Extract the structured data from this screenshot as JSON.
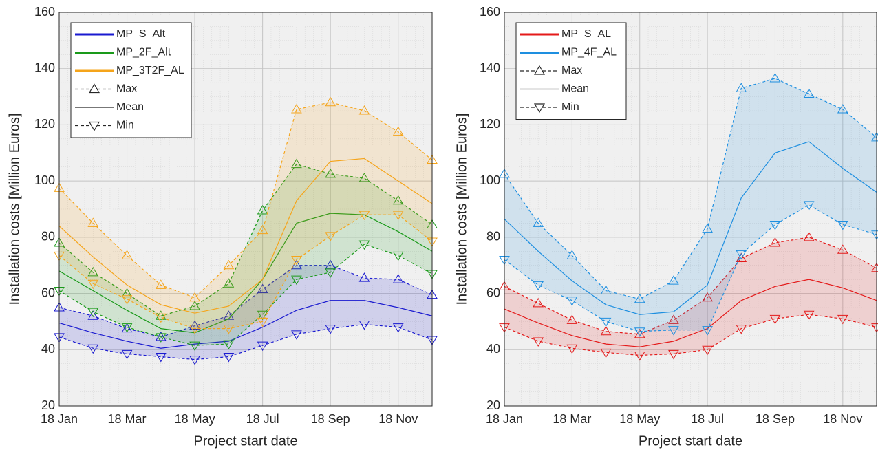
{
  "chart_data": [
    {
      "type": "line",
      "ylabel": "Installation costs [Million Euros]",
      "xlabel": "Project start date",
      "categories": [
        "18 Jan",
        null,
        "18 Mar",
        null,
        "18 May",
        null,
        "18 Jul",
        null,
        "18 Sep",
        null,
        "18 Nov",
        null
      ],
      "ylim": [
        20,
        160
      ],
      "yticks": [
        20,
        40,
        60,
        80,
        100,
        120,
        140,
        160
      ],
      "grid": true,
      "style_legend": [
        "Max",
        "Mean",
        "Min"
      ],
      "series": [
        {
          "name": "MP_S_Alt",
          "color": "#1a1ad0",
          "max": [
            55,
            52,
            47.5,
            44.5,
            48.5,
            52,
            61.5,
            70,
            70,
            65.5,
            65,
            59.5
          ],
          "mean": [
            49.5,
            46,
            43,
            40.5,
            42,
            43,
            48,
            54,
            57.5,
            57.5,
            55,
            52
          ],
          "min": [
            44.5,
            40.5,
            38.5,
            37.5,
            36.5,
            37.5,
            41.5,
            45.5,
            47.5,
            49,
            48,
            43.5
          ]
        },
        {
          "name": "MP_2F_Alt",
          "color": "#1a9a1a",
          "max": [
            78,
            67.5,
            60,
            52,
            55.5,
            63.5,
            89.5,
            106,
            102.5,
            101,
            93,
            84.5
          ],
          "mean": [
            68,
            61,
            54,
            47.5,
            46,
            51,
            65,
            85,
            88.5,
            88,
            82,
            75
          ],
          "min": [
            61,
            53.5,
            48,
            44.5,
            41.5,
            42,
            52.5,
            65,
            67.5,
            77.5,
            73.5,
            67
          ]
        },
        {
          "name": "MP_3T2F_AL",
          "color": "#f5a41a",
          "max": [
            97.5,
            85,
            73.5,
            63,
            58.5,
            70,
            82.5,
            125.5,
            128,
            125,
            117.5,
            107.5
          ],
          "mean": [
            84,
            73,
            63,
            56,
            53,
            55.5,
            65,
            93,
            107,
            108,
            100,
            92
          ],
          "min": [
            73.5,
            63.5,
            58,
            51.5,
            47.5,
            47.5,
            50,
            72,
            80.5,
            88,
            88,
            78.5
          ]
        }
      ]
    },
    {
      "type": "line",
      "ylabel": "Installation costs [Million Euros]",
      "xlabel": "Project start date",
      "categories": [
        "18 Jan",
        null,
        "18 Mar",
        null,
        "18 May",
        null,
        "18 Jul",
        null,
        "18 Sep",
        null,
        "18 Nov",
        null
      ],
      "ylim": [
        20,
        160
      ],
      "yticks": [
        20,
        40,
        60,
        80,
        100,
        120,
        140,
        160
      ],
      "grid": true,
      "style_legend": [
        "Max",
        "Mean",
        "Min"
      ],
      "series": [
        {
          "name": "MP_S_AL",
          "color": "#e41a1a",
          "max": [
            62.5,
            56.5,
            50.5,
            46.5,
            45.5,
            50.5,
            58.5,
            72.5,
            78,
            80,
            75.5,
            69
          ],
          "mean": [
            54.5,
            49.5,
            45,
            42,
            41,
            43,
            47.5,
            57.5,
            62.5,
            65,
            62,
            57.5
          ],
          "min": [
            48,
            43,
            40.5,
            39,
            38,
            38.5,
            40,
            47.5,
            51,
            52.5,
            51,
            48
          ]
        },
        {
          "name": "MP_4F_AL",
          "color": "#1e8fe0",
          "max": [
            102.5,
            85,
            73.5,
            61,
            58,
            64.5,
            83,
            133,
            136.5,
            131,
            125.5,
            115.5
          ],
          "mean": [
            86.5,
            75,
            64.5,
            56,
            52.5,
            53.5,
            63,
            94,
            110,
            114,
            104.5,
            96
          ],
          "min": [
            72,
            63,
            57.5,
            50,
            46.5,
            47,
            47,
            74,
            84.5,
            91.5,
            84.5,
            81
          ]
        }
      ]
    }
  ]
}
